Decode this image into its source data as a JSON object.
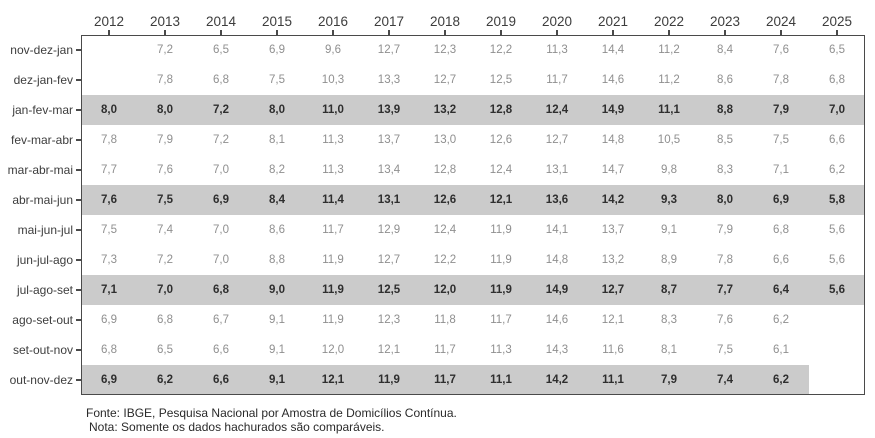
{
  "figure": {
    "colors": {
      "border": "#4a4a4a",
      "band": "#cbcbcb",
      "value": "#8f8f8f",
      "value_highlight": "#2e2e2e",
      "label": "#3d3d3d",
      "footer": "#2a2a2a"
    }
  },
  "footer": {
    "source": "Fonte: IBGE, Pesquisa Nacional por Amostra de Domicílios Contínua.",
    "note": "Nota: Somente os dados hachurados são comparáveis."
  },
  "chart_data": {
    "type": "table",
    "title": "",
    "legend_note": "Shaded (hachured) rows are the comparable moving quarters",
    "columns": [
      "2012",
      "2013",
      "2014",
      "2015",
      "2016",
      "2017",
      "2018",
      "2019",
      "2020",
      "2021",
      "2022",
      "2023",
      "2024",
      "2025"
    ],
    "rows": [
      {
        "label": "nov-dez-jan",
        "highlighted": false,
        "values": [
          "",
          "7,2",
          "6,5",
          "6,9",
          "9,6",
          "12,7",
          "12,3",
          "12,2",
          "11,3",
          "14,4",
          "11,2",
          "8,4",
          "7,6",
          "6,5"
        ]
      },
      {
        "label": "dez-jan-fev",
        "highlighted": false,
        "values": [
          "",
          "7,8",
          "6,8",
          "7,5",
          "10,3",
          "13,3",
          "12,7",
          "12,5",
          "11,7",
          "14,6",
          "11,2",
          "8,6",
          "7,8",
          "6,8"
        ]
      },
      {
        "label": "jan-fev-mar",
        "highlighted": true,
        "values": [
          "8,0",
          "8,0",
          "7,2",
          "8,0",
          "11,0",
          "13,9",
          "13,2",
          "12,8",
          "12,4",
          "14,9",
          "11,1",
          "8,8",
          "7,9",
          "7,0"
        ]
      },
      {
        "label": "fev-mar-abr",
        "highlighted": false,
        "values": [
          "7,8",
          "7,9",
          "7,2",
          "8,1",
          "11,3",
          "13,7",
          "13,0",
          "12,6",
          "12,7",
          "14,8",
          "10,5",
          "8,5",
          "7,5",
          "6,6"
        ]
      },
      {
        "label": "mar-abr-mai",
        "highlighted": false,
        "values": [
          "7,7",
          "7,6",
          "7,0",
          "8,2",
          "11,3",
          "13,4",
          "12,8",
          "12,4",
          "13,1",
          "14,7",
          "9,8",
          "8,3",
          "7,1",
          "6,2"
        ]
      },
      {
        "label": "abr-mai-jun",
        "highlighted": true,
        "values": [
          "7,6",
          "7,5",
          "6,9",
          "8,4",
          "11,4",
          "13,1",
          "12,6",
          "12,1",
          "13,6",
          "14,2",
          "9,3",
          "8,0",
          "6,9",
          "5,8"
        ]
      },
      {
        "label": "mai-jun-jul",
        "highlighted": false,
        "values": [
          "7,5",
          "7,4",
          "7,0",
          "8,6",
          "11,7",
          "12,9",
          "12,4",
          "11,9",
          "14,1",
          "13,7",
          "9,1",
          "7,9",
          "6,8",
          "5,6"
        ]
      },
      {
        "label": "jun-jul-ago",
        "highlighted": false,
        "values": [
          "7,3",
          "7,2",
          "7,0",
          "8,8",
          "11,9",
          "12,7",
          "12,2",
          "11,9",
          "14,8",
          "13,2",
          "8,9",
          "7,8",
          "6,6",
          "5,6"
        ]
      },
      {
        "label": "jul-ago-set",
        "highlighted": true,
        "values": [
          "7,1",
          "7,0",
          "6,8",
          "9,0",
          "11,9",
          "12,5",
          "12,0",
          "11,9",
          "14,9",
          "12,7",
          "8,7",
          "7,7",
          "6,4",
          "5,6"
        ]
      },
      {
        "label": "ago-set-out",
        "highlighted": false,
        "values": [
          "6,9",
          "6,8",
          "6,7",
          "9,1",
          "11,9",
          "12,3",
          "11,8",
          "11,7",
          "14,6",
          "12,1",
          "8,3",
          "7,6",
          "6,2",
          ""
        ]
      },
      {
        "label": "set-out-nov",
        "highlighted": false,
        "values": [
          "6,8",
          "6,5",
          "6,6",
          "9,1",
          "12,0",
          "12,1",
          "11,7",
          "11,3",
          "14,3",
          "11,6",
          "8,1",
          "7,5",
          "6,1",
          ""
        ]
      },
      {
        "label": "out-nov-dez",
        "highlighted": true,
        "values": [
          "6,9",
          "6,2",
          "6,6",
          "9,1",
          "12,1",
          "11,9",
          "11,7",
          "11,1",
          "14,2",
          "11,1",
          "7,9",
          "7,4",
          "6,2",
          ""
        ]
      }
    ]
  }
}
